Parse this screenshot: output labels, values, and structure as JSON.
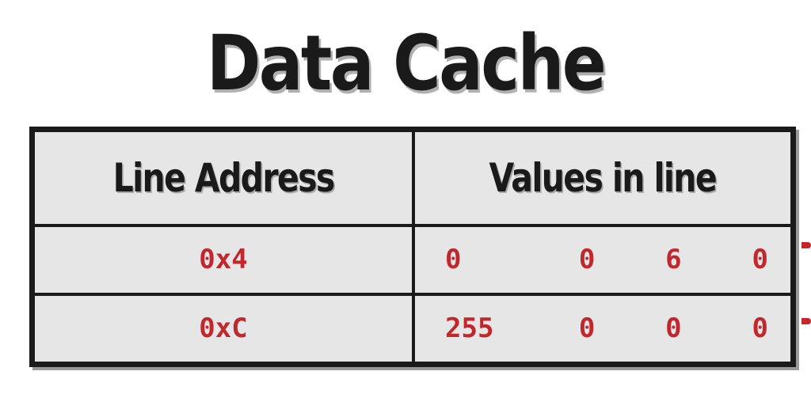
{
  "title": "Data Cache",
  "table": {
    "headers": [
      "Line Address",
      "Values in line"
    ],
    "rows": [
      {
        "address": "0x4",
        "values": [
          "0",
          "0",
          "6",
          "0"
        ]
      },
      {
        "address": "0xC",
        "values": [
          "255",
          "0",
          "0",
          "0"
        ]
      }
    ]
  },
  "colors": {
    "text": "#1a1a1a",
    "value_text": "#c0282d",
    "cell_background": "#e6e6e6",
    "border": "#1a1a1a"
  }
}
